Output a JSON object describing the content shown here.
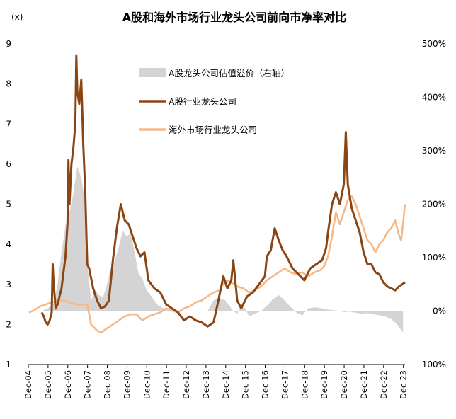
{
  "chart_data": {
    "type": "line",
    "title": "A股和海外市场行业龙头公司前向市净率对比",
    "left_unit_label": "(x)",
    "yleft": {
      "min": 1,
      "max": 9,
      "ticks": [
        "1",
        "2",
        "3",
        "4",
        "5",
        "6",
        "7",
        "8",
        "9"
      ]
    },
    "yright": {
      "min": -100,
      "max": 500,
      "ticks": [
        "-100%",
        "0%",
        "100%",
        "200%",
        "300%",
        "400%",
        "500%"
      ],
      "tick_values": [
        -100,
        0,
        100,
        200,
        300,
        400,
        500
      ]
    },
    "x_range": [
      2004.917,
      2024.0
    ],
    "x_tick_labels": [
      "Dec-04",
      "Dec-05",
      "Dec-06",
      "Dec-07",
      "Dec-08",
      "Dec-09",
      "Dec-10",
      "Dec-11",
      "Dec-12",
      "Dec-13",
      "Dec-14",
      "Dec-15",
      "Dec-16",
      "Dec-17",
      "Dec-18",
      "Dec-19",
      "Dec-20",
      "Dec-21",
      "Dec-22",
      "Dec-23"
    ],
    "x_tick_values": [
      2004.917,
      2005.917,
      2006.917,
      2007.917,
      2008.917,
      2009.917,
      2010.917,
      2011.917,
      2012.917,
      2013.917,
      2014.917,
      2015.917,
      2016.917,
      2017.917,
      2018.917,
      2019.917,
      2020.917,
      2021.917,
      2022.917,
      2023.917
    ],
    "series": [
      {
        "name": "A股龙头公司估值溢价（右轴）",
        "axis": "right",
        "style": "area",
        "color": "#d4d4d4",
        "x": [
          2005.6,
          2005.9,
          2006.2,
          2006.4,
          2006.6,
          2006.8,
          2007.0,
          2007.2,
          2007.4,
          2007.6,
          2007.8,
          2007.95,
          2008.1,
          2008.3,
          2008.5,
          2008.7,
          2008.9,
          2009.1,
          2009.3,
          2009.5,
          2009.7,
          2009.9,
          2010.1,
          2010.3,
          2010.5,
          2010.7,
          2010.9,
          2011.2,
          2011.5,
          2011.8,
          2012.1,
          2012.5,
          2012.9,
          2013.3,
          2013.7,
          2014.0,
          2014.3,
          2014.6,
          2014.9,
          2015.1,
          2015.3,
          2015.5,
          2015.7,
          2015.9,
          2016.1,
          2016.4,
          2016.7,
          2017.0,
          2017.3,
          2017.6,
          2017.9,
          2018.2,
          2018.5,
          2018.8,
          2019.1,
          2019.4,
          2019.7,
          2020.0,
          2020.3,
          2020.6,
          2020.9,
          2021.2,
          2021.5,
          2021.8,
          2022.1,
          2022.4,
          2022.7,
          2023.0,
          2023.3,
          2023.6,
          2023.9
        ],
        "values": [
          0,
          5,
          15,
          50,
          110,
          160,
          185,
          220,
          270,
          250,
          200,
          70,
          20,
          40,
          30,
          25,
          50,
          80,
          95,
          120,
          150,
          140,
          145,
          110,
          70,
          60,
          40,
          25,
          10,
          5,
          0,
          0,
          0,
          0,
          0,
          0,
          20,
          25,
          20,
          10,
          0,
          -5,
          10,
          5,
          -10,
          -5,
          0,
          10,
          22,
          30,
          20,
          8,
          -3,
          -8,
          5,
          7,
          6,
          3,
          2,
          1,
          -2,
          -1,
          -3,
          -5,
          -4,
          -6,
          -8,
          -10,
          -15,
          -25,
          -40
        ]
      },
      {
        "name": "A股行业龙头公司",
        "axis": "left",
        "style": "line",
        "color": "#8b4513",
        "x": [
          2005.6,
          2005.7,
          2005.8,
          2005.9,
          2006.0,
          2006.1,
          2006.15,
          2006.2,
          2006.3,
          2006.4,
          2006.5,
          2006.6,
          2006.7,
          2006.8,
          2006.9,
          2006.95,
          2007.0,
          2007.1,
          2007.2,
          2007.3,
          2007.35,
          2007.4,
          2007.5,
          2007.6,
          2007.7,
          2007.8,
          2007.9,
          2008.0,
          2008.2,
          2008.4,
          2008.6,
          2008.8,
          2009.0,
          2009.2,
          2009.4,
          2009.5,
          2009.6,
          2009.8,
          2010.0,
          2010.2,
          2010.4,
          2010.6,
          2010.8,
          2011.0,
          2011.3,
          2011.6,
          2011.9,
          2012.2,
          2012.5,
          2012.8,
          2013.1,
          2013.4,
          2013.7,
          2014.0,
          2014.3,
          2014.5,
          2014.8,
          2015.0,
          2015.2,
          2015.3,
          2015.5,
          2015.7,
          2016.0,
          2016.3,
          2016.6,
          2016.9,
          2017.0,
          2017.2,
          2017.4,
          2017.6,
          2017.8,
          2018.0,
          2018.3,
          2018.6,
          2018.9,
          2019.2,
          2019.5,
          2019.8,
          2020.0,
          2020.1,
          2020.3,
          2020.5,
          2020.7,
          2020.9,
          2021.0,
          2021.1,
          2021.3,
          2021.5,
          2021.7,
          2021.9,
          2022.1,
          2022.3,
          2022.5,
          2022.7,
          2022.9,
          2023.1,
          2023.3,
          2023.5,
          2023.7,
          2023.85,
          2024.0
        ],
        "values": [
          2.3,
          2.2,
          2.05,
          2.0,
          2.1,
          2.3,
          3.5,
          3.0,
          2.4,
          2.5,
          2.7,
          2.9,
          3.3,
          3.7,
          4.5,
          6.1,
          5.0,
          6.0,
          6.4,
          7.0,
          8.7,
          7.8,
          7.5,
          8.1,
          6.5,
          5.3,
          3.5,
          3.4,
          2.9,
          2.6,
          2.4,
          2.45,
          2.6,
          3.6,
          4.4,
          4.7,
          5.0,
          4.6,
          4.5,
          4.2,
          3.9,
          3.7,
          3.8,
          3.1,
          2.9,
          2.8,
          2.5,
          2.4,
          2.3,
          2.1,
          2.2,
          2.1,
          2.05,
          1.95,
          2.05,
          2.5,
          3.2,
          2.9,
          3.1,
          3.6,
          2.6,
          2.4,
          2.7,
          2.8,
          3.0,
          3.2,
          3.7,
          3.85,
          4.4,
          4.1,
          3.85,
          3.7,
          3.4,
          3.25,
          3.1,
          3.4,
          3.5,
          3.6,
          3.9,
          4.3,
          5.0,
          5.3,
          5.0,
          5.5,
          6.8,
          5.5,
          4.9,
          4.6,
          4.3,
          3.8,
          3.5,
          3.5,
          3.3,
          3.25,
          3.05,
          2.95,
          2.9,
          2.85,
          2.95,
          3.0,
          3.05
        ]
      },
      {
        "name": "海外市场行业龙头公司",
        "axis": "left",
        "style": "line",
        "color": "#f5b887",
        "x": [
          2004.95,
          2005.2,
          2005.5,
          2005.8,
          2006.1,
          2006.4,
          2006.7,
          2007.0,
          2007.3,
          2007.6,
          2007.9,
          2008.1,
          2008.4,
          2008.6,
          2008.9,
          2009.2,
          2009.5,
          2009.8,
          2010.1,
          2010.4,
          2010.7,
          2011.0,
          2011.3,
          2011.6,
          2011.9,
          2012.2,
          2012.5,
          2012.8,
          2013.1,
          2013.4,
          2013.7,
          2014.0,
          2014.3,
          2014.6,
          2014.9,
          2015.2,
          2015.5,
          2015.8,
          2016.1,
          2016.4,
          2016.7,
          2017.0,
          2017.3,
          2017.6,
          2017.9,
          2018.2,
          2018.5,
          2018.8,
          2019.1,
          2019.4,
          2019.7,
          2019.9,
          2020.1,
          2020.3,
          2020.5,
          2020.7,
          2020.9,
          2021.1,
          2021.3,
          2021.5,
          2021.7,
          2021.9,
          2022.1,
          2022.3,
          2022.5,
          2022.7,
          2022.9,
          2023.1,
          2023.3,
          2023.5,
          2023.65,
          2023.8,
          2023.9,
          2024.0
        ],
        "values": [
          2.3,
          2.35,
          2.45,
          2.5,
          2.55,
          2.6,
          2.6,
          2.55,
          2.5,
          2.5,
          2.5,
          2.0,
          1.85,
          1.8,
          1.9,
          2.0,
          2.1,
          2.2,
          2.25,
          2.25,
          2.1,
          2.2,
          2.25,
          2.3,
          2.4,
          2.35,
          2.3,
          2.4,
          2.45,
          2.55,
          2.6,
          2.7,
          2.8,
          2.85,
          3.1,
          3.05,
          2.95,
          2.9,
          2.8,
          2.85,
          2.95,
          3.1,
          3.2,
          3.3,
          3.4,
          3.3,
          3.25,
          3.3,
          3.2,
          3.3,
          3.35,
          3.45,
          3.7,
          4.2,
          4.8,
          4.5,
          4.8,
          5.1,
          5.2,
          5.0,
          4.7,
          4.4,
          4.1,
          4.0,
          3.8,
          4.0,
          4.1,
          4.3,
          4.4,
          4.6,
          4.3,
          4.1,
          4.5,
          5.0
        ]
      }
    ]
  },
  "legend": [
    {
      "label": "A股龙头公司估值溢价（右轴）",
      "swatch": "area",
      "color": "#d4d4d4"
    },
    {
      "label": "A股行业龙头公司",
      "swatch": "line",
      "color": "#8b4513"
    },
    {
      "label": "海外市场行业龙头公司",
      "swatch": "line",
      "color": "#f5b887"
    }
  ]
}
